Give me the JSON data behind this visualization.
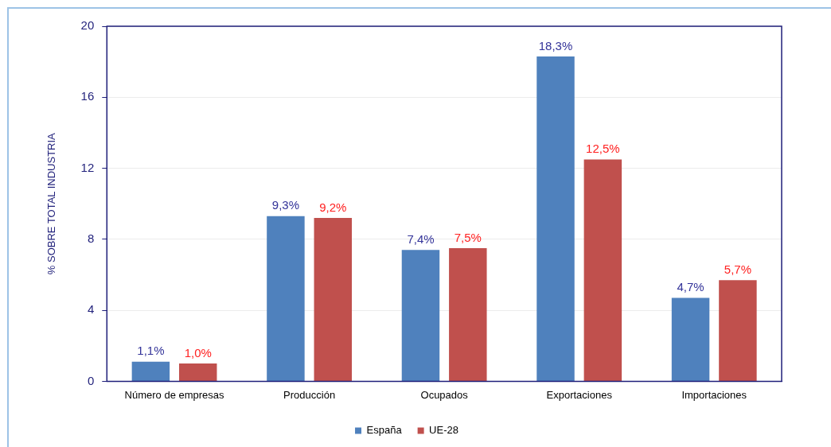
{
  "chart_data": {
    "type": "bar",
    "ylabel": "% SOBRE TOTAL INDUSTRIA",
    "categories": [
      "Número de empresas",
      "Producción",
      "Ocupados",
      "Exportaciones",
      "Importaciones"
    ],
    "series": [
      {
        "name": "España",
        "color": "#4f81bd",
        "values": [
          1.1,
          9.3,
          7.4,
          18.3,
          4.7
        ],
        "value_labels": [
          "1,1%",
          "9,3%",
          "7,4%",
          "18,3%",
          "4,7%"
        ]
      },
      {
        "name": "UE-28",
        "color": "#c0504d",
        "values": [
          1.0,
          9.2,
          7.5,
          12.5,
          5.7
        ],
        "value_labels": [
          "1,0%",
          "9,2%",
          "7,5%",
          "12,5%",
          "5,7%"
        ]
      }
    ],
    "ylim": [
      0,
      20
    ],
    "yticks": [
      0,
      4,
      8,
      12,
      16,
      20
    ],
    "grid": "y",
    "legend": "bottom"
  }
}
